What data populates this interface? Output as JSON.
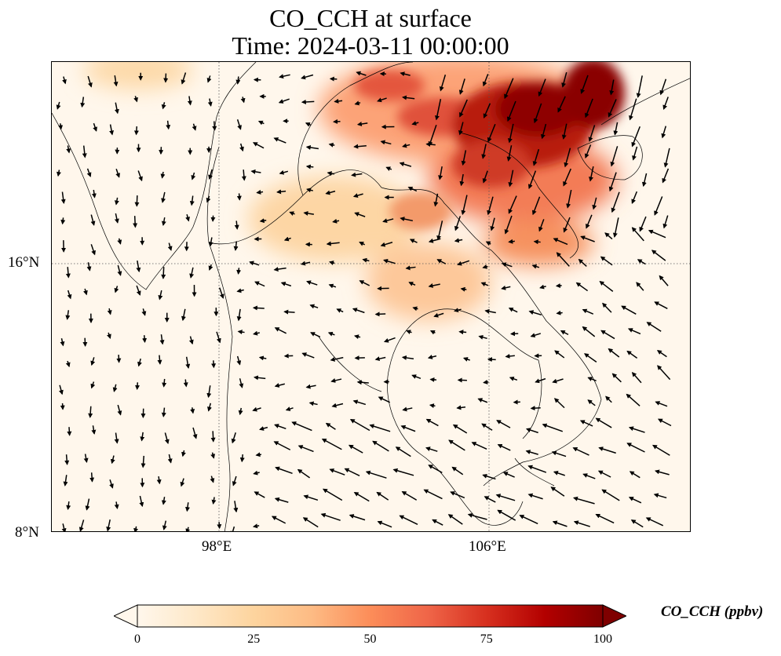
{
  "title": {
    "line1": "CO_CCH at surface",
    "line2": "Time: 2024-03-11 00:00:00"
  },
  "map": {
    "variable": "CO_CCH",
    "level": "surface",
    "lon_ticks": [
      "98°E",
      "106°E"
    ],
    "lat_ticks": [
      "16°N",
      "8°N"
    ],
    "gridlines": true,
    "overlay": "wind vectors"
  },
  "colorbar": {
    "label": "CO_CCH (ppbv)",
    "ticks": [
      "0",
      "25",
      "50",
      "75",
      "100"
    ],
    "min": 0,
    "max": 100,
    "extend": "both",
    "colormap": [
      "#fff7ec",
      "#fee8c8",
      "#fdd49e",
      "#fdbb84",
      "#fc8d59",
      "#ef6548",
      "#d7301f",
      "#b30000",
      "#7f0000"
    ]
  }
}
